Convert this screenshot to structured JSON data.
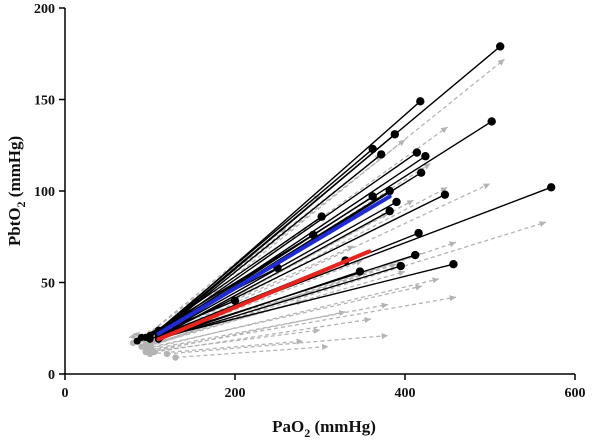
{
  "chart_data": {
    "type": "line",
    "xlabel": {
      "main": "PaO",
      "sub": "2",
      "tail": " (mmHg)"
    },
    "ylabel": {
      "main": "PbtO",
      "sub": "2",
      "tail": " (mmHg)"
    },
    "xlim": [
      0,
      600
    ],
    "ylim": [
      0,
      200
    ],
    "xticks": [
      0,
      200,
      400,
      600
    ],
    "yticks": [
      0,
      50,
      100,
      150,
      200
    ],
    "grid": false,
    "colors": {
      "black": "#000000",
      "gray": "#b3b3b3",
      "blue": "#1f2bd8",
      "red": "#e8241d"
    },
    "black_segments": [
      {
        "x1": 110,
        "y1": 23,
        "x2": 512,
        "y2": 179
      },
      {
        "x1": 110,
        "y1": 23,
        "x2": 418,
        "y2": 149
      },
      {
        "x1": 110,
        "y1": 24,
        "x2": 362,
        "y2": 123
      },
      {
        "x1": 110,
        "y1": 22,
        "x2": 372,
        "y2": 120
      },
      {
        "x1": 110,
        "y1": 22,
        "x2": 388,
        "y2": 131
      },
      {
        "x1": 112,
        "y1": 23,
        "x2": 414,
        "y2": 121
      },
      {
        "x1": 112,
        "y1": 22,
        "x2": 424,
        "y2": 119
      },
      {
        "x1": 115,
        "y1": 24,
        "x2": 502,
        "y2": 138
      },
      {
        "x1": 112,
        "y1": 21,
        "x2": 419,
        "y2": 110
      },
      {
        "x1": 112,
        "y1": 22,
        "x2": 382,
        "y2": 100
      },
      {
        "x1": 110,
        "y1": 21,
        "x2": 362,
        "y2": 97
      },
      {
        "x1": 115,
        "y1": 22,
        "x2": 447,
        "y2": 98
      },
      {
        "x1": 110,
        "y1": 21,
        "x2": 390,
        "y2": 94
      },
      {
        "x1": 110,
        "y1": 20,
        "x2": 382,
        "y2": 89
      },
      {
        "x1": 112,
        "y1": 21,
        "x2": 572,
        "y2": 102
      },
      {
        "x1": 110,
        "y1": 20,
        "x2": 416,
        "y2": 77
      },
      {
        "x1": 110,
        "y1": 20,
        "x2": 412,
        "y2": 65
      },
      {
        "x1": 112,
        "y1": 20,
        "x2": 457,
        "y2": 60
      },
      {
        "x1": 110,
        "y1": 19,
        "x2": 395,
        "y2": 59
      },
      {
        "x1": 110,
        "y1": 19,
        "x2": 347,
        "y2": 56
      },
      {
        "x1": 100,
        "y1": 21,
        "x2": 302,
        "y2": 86
      },
      {
        "x1": 95,
        "y1": 20,
        "x2": 292,
        "y2": 76
      },
      {
        "x1": 100,
        "y1": 19,
        "x2": 330,
        "y2": 62
      },
      {
        "x1": 90,
        "y1": 20,
        "x2": 250,
        "y2": 58
      },
      {
        "x1": 85,
        "y1": 18,
        "x2": 200,
        "y2": 40
      }
    ],
    "gray_segments": [
      {
        "x1": 105,
        "y1": 18,
        "x2": 517,
        "y2": 172
      },
      {
        "x1": 100,
        "y1": 18,
        "x2": 450,
        "y2": 135
      },
      {
        "x1": 100,
        "y1": 19,
        "x2": 400,
        "y2": 128
      },
      {
        "x1": 95,
        "y1": 18,
        "x2": 372,
        "y2": 120
      },
      {
        "x1": 100,
        "y1": 17,
        "x2": 430,
        "y2": 115
      },
      {
        "x1": 100,
        "y1": 17,
        "x2": 500,
        "y2": 104
      },
      {
        "x1": 100,
        "y1": 16,
        "x2": 450,
        "y2": 102
      },
      {
        "x1": 95,
        "y1": 16,
        "x2": 410,
        "y2": 95
      },
      {
        "x1": 100,
        "y1": 17,
        "x2": 380,
        "y2": 88
      },
      {
        "x1": 100,
        "y1": 16,
        "x2": 566,
        "y2": 83
      },
      {
        "x1": 100,
        "y1": 15,
        "x2": 460,
        "y2": 72
      },
      {
        "x1": 95,
        "y1": 15,
        "x2": 420,
        "y2": 66
      },
      {
        "x1": 90,
        "y1": 15,
        "x2": 400,
        "y2": 56
      },
      {
        "x1": 100,
        "y1": 14,
        "x2": 440,
        "y2": 52
      },
      {
        "x1": 95,
        "y1": 14,
        "x2": 420,
        "y2": 48
      },
      {
        "x1": 100,
        "y1": 13,
        "x2": 460,
        "y2": 42
      },
      {
        "x1": 95,
        "y1": 13,
        "x2": 380,
        "y2": 38
      },
      {
        "x1": 100,
        "y1": 12,
        "x2": 330,
        "y2": 34
      },
      {
        "x1": 105,
        "y1": 12,
        "x2": 360,
        "y2": 30
      },
      {
        "x1": 95,
        "y1": 12,
        "x2": 300,
        "y2": 24
      },
      {
        "x1": 100,
        "y1": 11,
        "x2": 280,
        "y2": 18
      },
      {
        "x1": 120,
        "y1": 11,
        "x2": 380,
        "y2": 21
      },
      {
        "x1": 130,
        "y1": 9,
        "x2": 310,
        "y2": 15
      },
      {
        "x1": 90,
        "y1": 19,
        "x2": 300,
        "y2": 98
      },
      {
        "x1": 90,
        "y1": 19,
        "x2": 260,
        "y2": 80
      },
      {
        "x1": 95,
        "y1": 18,
        "x2": 340,
        "y2": 70
      },
      {
        "x1": 100,
        "y1": 17,
        "x2": 350,
        "y2": 62
      },
      {
        "x1": 80,
        "y1": 17,
        "x2": 290,
        "y2": 45
      },
      {
        "x1": 100,
        "y1": 16,
        "x2": 390,
        "y2": 60
      },
      {
        "x1": 95,
        "y1": 15,
        "x2": 280,
        "y2": 40
      },
      {
        "x1": 100,
        "y1": 22,
        "x2": 75,
        "y2": 20
      },
      {
        "x1": 105,
        "y1": 20,
        "x2": 80,
        "y2": 22
      }
    ],
    "regression_lines": [
      {
        "color": "blue",
        "x1": 110,
        "y1": 22,
        "x2": 382,
        "y2": 97
      },
      {
        "color": "red",
        "x1": 110,
        "y1": 19,
        "x2": 358,
        "y2": 67
      }
    ]
  }
}
